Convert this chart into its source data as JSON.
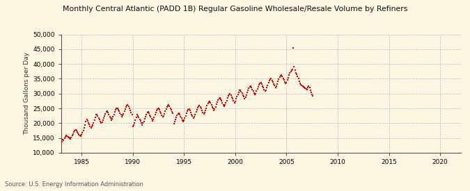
{
  "title": "Monthly Central Atlantic (PADD 1B) Regular Gasoline Wholesale/Resale Volume by Refiners",
  "ylabel": "Thousand Gallons per Day",
  "source": "Source: U.S. Energy Information Administration",
  "background_color": "#fdf6e3",
  "plot_bg_color": "#fdf6e3",
  "dot_color": "#cc0000",
  "xlim": [
    1983,
    2022
  ],
  "ylim": [
    10000,
    50000
  ],
  "xticks": [
    1985,
    1990,
    1995,
    2000,
    2005,
    2010,
    2015,
    2020
  ],
  "yticks": [
    10000,
    15000,
    20000,
    25000,
    30000,
    35000,
    40000,
    45000,
    50000
  ],
  "data_x": [
    1983.08,
    1983.17,
    1983.25,
    1983.33,
    1983.42,
    1983.5,
    1983.58,
    1983.67,
    1983.75,
    1983.83,
    1983.92,
    1984.0,
    1984.08,
    1984.17,
    1984.25,
    1984.33,
    1984.42,
    1984.5,
    1984.58,
    1984.67,
    1984.75,
    1984.83,
    1984.92,
    1985.0,
    1985.08,
    1985.17,
    1985.25,
    1985.33,
    1985.42,
    1985.5,
    1985.58,
    1985.67,
    1985.75,
    1985.83,
    1985.92,
    1986.0,
    1986.08,
    1986.17,
    1986.25,
    1986.33,
    1986.42,
    1986.5,
    1986.58,
    1986.67,
    1986.75,
    1986.83,
    1986.92,
    1987.0,
    1987.08,
    1987.17,
    1987.25,
    1987.33,
    1987.42,
    1987.5,
    1987.58,
    1987.67,
    1987.75,
    1987.83,
    1987.92,
    1988.0,
    1988.08,
    1988.17,
    1988.25,
    1988.33,
    1988.42,
    1988.5,
    1988.58,
    1988.67,
    1988.75,
    1988.83,
    1988.92,
    1989.0,
    1989.08,
    1989.17,
    1989.25,
    1989.33,
    1989.42,
    1989.5,
    1989.58,
    1989.67,
    1989.75,
    1989.83,
    1989.92,
    1990.0,
    1990.08,
    1990.17,
    1990.25,
    1990.33,
    1990.42,
    1990.5,
    1990.58,
    1990.67,
    1990.75,
    1990.83,
    1990.92,
    1991.0,
    1991.08,
    1991.17,
    1991.25,
    1991.33,
    1991.42,
    1991.5,
    1991.58,
    1991.67,
    1991.75,
    1991.83,
    1991.92,
    1992.0,
    1992.08,
    1992.17,
    1992.25,
    1992.33,
    1992.42,
    1992.5,
    1992.58,
    1992.67,
    1992.75,
    1992.83,
    1992.92,
    1993.0,
    1993.08,
    1993.17,
    1993.25,
    1993.33,
    1993.42,
    1993.5,
    1993.58,
    1993.67,
    1993.75,
    1993.83,
    1993.92,
    1994.0,
    1994.08,
    1994.17,
    1994.25,
    1994.33,
    1994.42,
    1994.5,
    1994.58,
    1994.67,
    1994.75,
    1994.83,
    1994.92,
    1995.0,
    1995.08,
    1995.17,
    1995.25,
    1995.33,
    1995.42,
    1995.5,
    1995.58,
    1995.67,
    1995.75,
    1995.83,
    1995.92,
    1996.0,
    1996.08,
    1996.17,
    1996.25,
    1996.33,
    1996.42,
    1996.5,
    1996.58,
    1996.67,
    1996.75,
    1996.83,
    1996.92,
    1997.0,
    1997.08,
    1997.17,
    1997.25,
    1997.33,
    1997.42,
    1997.5,
    1997.58,
    1997.67,
    1997.75,
    1997.83,
    1997.92,
    1998.0,
    1998.08,
    1998.17,
    1998.25,
    1998.33,
    1998.42,
    1998.5,
    1998.58,
    1998.67,
    1998.75,
    1998.83,
    1998.92,
    1999.0,
    1999.08,
    1999.17,
    1999.25,
    1999.33,
    1999.42,
    1999.5,
    1999.58,
    1999.67,
    1999.75,
    1999.83,
    1999.92,
    2000.0,
    2000.08,
    2000.17,
    2000.25,
    2000.33,
    2000.42,
    2000.5,
    2000.58,
    2000.67,
    2000.75,
    2000.83,
    2000.92,
    2001.0,
    2001.08,
    2001.17,
    2001.25,
    2001.33,
    2001.42,
    2001.5,
    2001.58,
    2001.67,
    2001.75,
    2001.83,
    2001.92,
    2002.0,
    2002.08,
    2002.17,
    2002.25,
    2002.33,
    2002.42,
    2002.5,
    2002.58,
    2002.67,
    2002.75,
    2002.83,
    2002.92,
    2003.0,
    2003.08,
    2003.17,
    2003.25,
    2003.33,
    2003.42,
    2003.5,
    2003.58,
    2003.67,
    2003.75,
    2003.83,
    2003.92,
    2004.0,
    2004.08,
    2004.17,
    2004.25,
    2004.33,
    2004.42,
    2004.5,
    2004.58,
    2004.67,
    2004.75,
    2004.83,
    2004.92,
    2005.0,
    2005.08,
    2005.17,
    2005.25,
    2005.33,
    2005.42,
    2005.5,
    2005.58,
    2005.67,
    2005.75,
    2005.83,
    2005.92,
    2006.0,
    2006.08,
    2006.17,
    2006.25,
    2006.33,
    2006.42,
    2006.5,
    2006.58,
    2006.67,
    2006.75,
    2006.83,
    2006.92,
    2007.0,
    2007.08,
    2007.17,
    2007.25,
    2007.33,
    2007.42,
    2007.5,
    2007.58
  ],
  "data_y": [
    13800,
    14500,
    14200,
    15000,
    15500,
    15800,
    15600,
    15300,
    15100,
    14900,
    14700,
    15200,
    15800,
    16300,
    17000,
    17500,
    17800,
    17400,
    17000,
    16600,
    16200,
    15900,
    15600,
    16000,
    16800,
    17500,
    18500,
    19500,
    20500,
    21200,
    20800,
    20200,
    19600,
    19000,
    18400,
    18800,
    19500,
    20200,
    21000,
    22000,
    22800,
    23000,
    22500,
    21800,
    21200,
    20600,
    20000,
    20400,
    21000,
    21800,
    22500,
    23200,
    23800,
    24000,
    23500,
    22900,
    22300,
    21700,
    21100,
    21600,
    22200,
    23000,
    23800,
    24500,
    24900,
    25100,
    24600,
    24000,
    23400,
    22800,
    22200,
    22600,
    23200,
    24000,
    24800,
    25500,
    26000,
    26200,
    25700,
    25000,
    24300,
    23600,
    22900,
    18800,
    19500,
    20200,
    21000,
    22000,
    22800,
    22500,
    22000,
    21300,
    20700,
    20100,
    19500,
    20000,
    20600,
    21400,
    22200,
    23000,
    23600,
    23800,
    23300,
    22700,
    22100,
    21500,
    20900,
    21300,
    22000,
    22800,
    23600,
    24300,
    24800,
    25000,
    24500,
    23900,
    23300,
    22700,
    22100,
    22500,
    23200,
    24000,
    24800,
    25500,
    26000,
    26200,
    25700,
    25100,
    24500,
    23900,
    23300,
    19800,
    20500,
    21200,
    22000,
    22700,
    23200,
    23400,
    22900,
    22300,
    21700,
    21100,
    20500,
    21000,
    21700,
    22500,
    23300,
    24000,
    24500,
    24700,
    24200,
    23600,
    23000,
    22400,
    21800,
    22200,
    23000,
    23800,
    24600,
    25300,
    25800,
    26000,
    25500,
    24900,
    24300,
    23700,
    23100,
    23500,
    24300,
    25100,
    25900,
    26600,
    27100,
    27300,
    26800,
    26200,
    25600,
    25000,
    24400,
    24800,
    25600,
    26400,
    27200,
    27900,
    28400,
    28600,
    28100,
    27500,
    26900,
    26300,
    25700,
    26100,
    26900,
    27700,
    28500,
    29200,
    29700,
    29900,
    29400,
    28800,
    28200,
    27600,
    27000,
    27400,
    28200,
    29000,
    29800,
    30500,
    31000,
    31200,
    30700,
    30100,
    29500,
    28900,
    28300,
    28700,
    29500,
    30300,
    31100,
    31800,
    32300,
    32500,
    32000,
    31400,
    30800,
    30200,
    29600,
    30000,
    30800,
    31600,
    32400,
    33100,
    33500,
    33700,
    33200,
    32600,
    32000,
    31400,
    30800,
    31200,
    32000,
    32800,
    33600,
    34300,
    34800,
    35000,
    34500,
    33900,
    33300,
    32700,
    32100,
    32500,
    33300,
    34100,
    34900,
    35600,
    36100,
    36300,
    35800,
    35200,
    34600,
    34000,
    33400,
    33800,
    34600,
    35400,
    36200,
    36900,
    37400,
    37900,
    38200,
    45500,
    39000,
    38000,
    37000,
    36500,
    35800,
    35000,
    34200,
    33500,
    33000,
    32800,
    32500,
    32200,
    32000,
    31800,
    31600,
    31400,
    32000,
    32500,
    32000,
    31200,
    30500,
    29800,
    29200
  ]
}
